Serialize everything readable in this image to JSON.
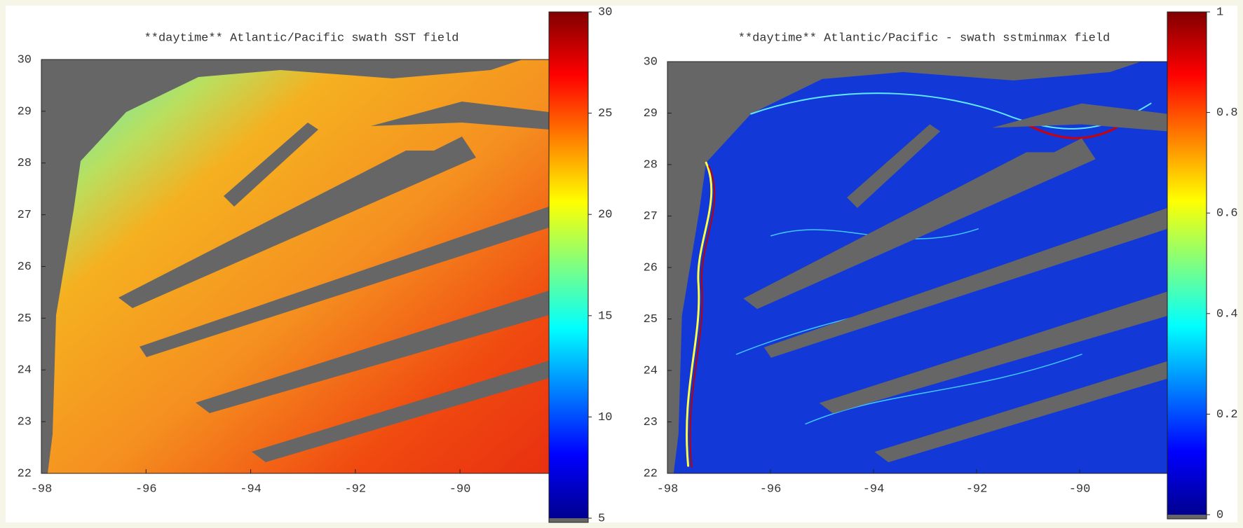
{
  "chart_data": [
    {
      "type": "heatmap",
      "title": "**daytime** Atlantic/Pacific swath SST field",
      "xlim": [
        -98,
        -88.3
      ],
      "xticks": [
        -98,
        -96,
        -94,
        -92,
        -90
      ],
      "ylim": [
        22,
        30
      ],
      "yticks": [
        22,
        23,
        24,
        25,
        26,
        27,
        28,
        29,
        30
      ],
      "colorbar": {
        "lim": [
          5,
          30
        ],
        "ticks": [
          5,
          10,
          15,
          20,
          25,
          30
        ],
        "colormap": "jet"
      }
    },
    {
      "type": "heatmap",
      "title": "**daytime** Atlantic/Pacific - swath sstminmax field",
      "xlim": [
        -98,
        -88.3
      ],
      "xticks": [
        -98,
        -96,
        -94,
        -92,
        -90
      ],
      "ylim": [
        22,
        30
      ],
      "yticks": [
        22,
        23,
        24,
        25,
        26,
        27,
        28,
        29,
        30
      ],
      "colorbar": {
        "lim": [
          0,
          1
        ],
        "ticks": [
          0,
          0.2,
          0.4,
          0.6,
          0.8,
          1
        ],
        "colormap": "jet"
      }
    }
  ]
}
